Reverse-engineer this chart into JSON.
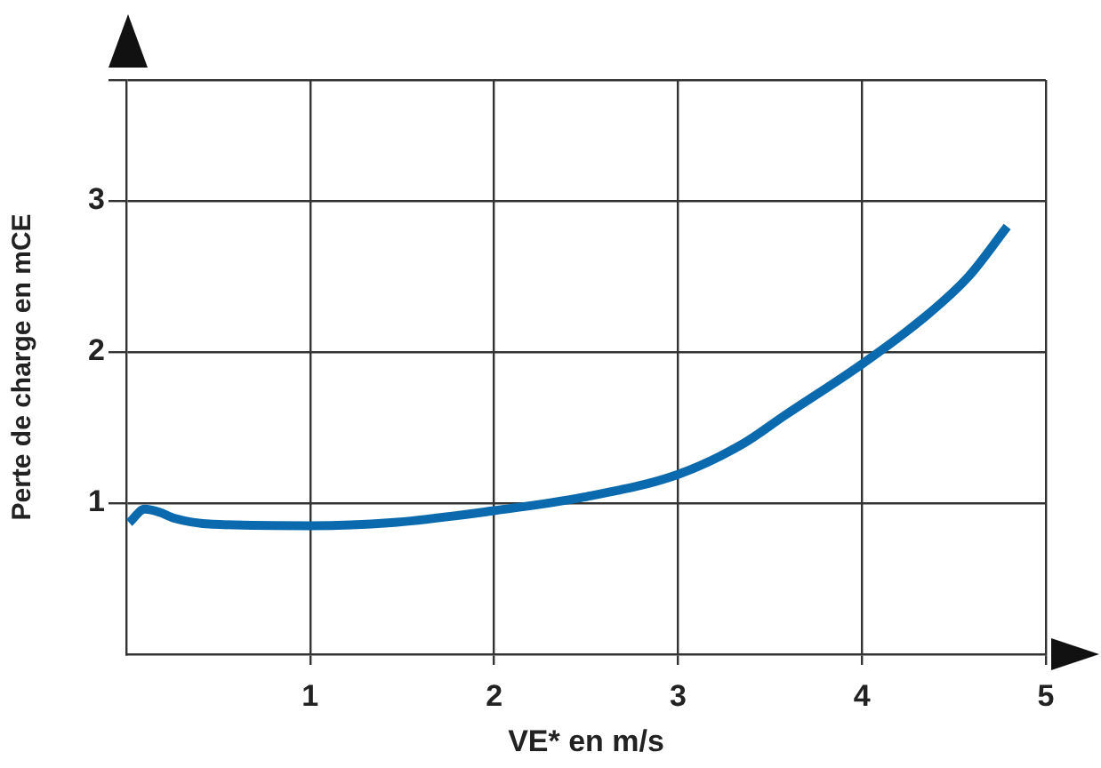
{
  "chart_data": {
    "type": "line",
    "xlabel": "VE* en m/s",
    "ylabel": "Perte de charge en mCE",
    "x": [
      0.016,
      0.1,
      0.18,
      0.26,
      0.47,
      1.0,
      1.44,
      2.0,
      2.49,
      3.0,
      3.35,
      3.58,
      4.0,
      4.35,
      4.58,
      4.79
    ],
    "series": [
      {
        "color": "#0a6aad",
        "values": [
          0.87,
          0.96,
          0.94,
          0.9,
          0.86,
          0.85,
          0.87,
          0.95,
          1.04,
          1.19,
          1.39,
          1.58,
          1.92,
          2.24,
          2.5,
          2.83
        ]
      }
    ],
    "xlim": [
      0,
      5
    ],
    "ylim": [
      0,
      3.8
    ],
    "xticks": [
      1,
      2,
      3,
      4,
      5
    ],
    "yticks": [
      1,
      2,
      3,
      {
        "value": 3.8,
        "label": null
      }
    ],
    "grid": true,
    "legend": false,
    "marker": "none",
    "line_style": "solid"
  }
}
